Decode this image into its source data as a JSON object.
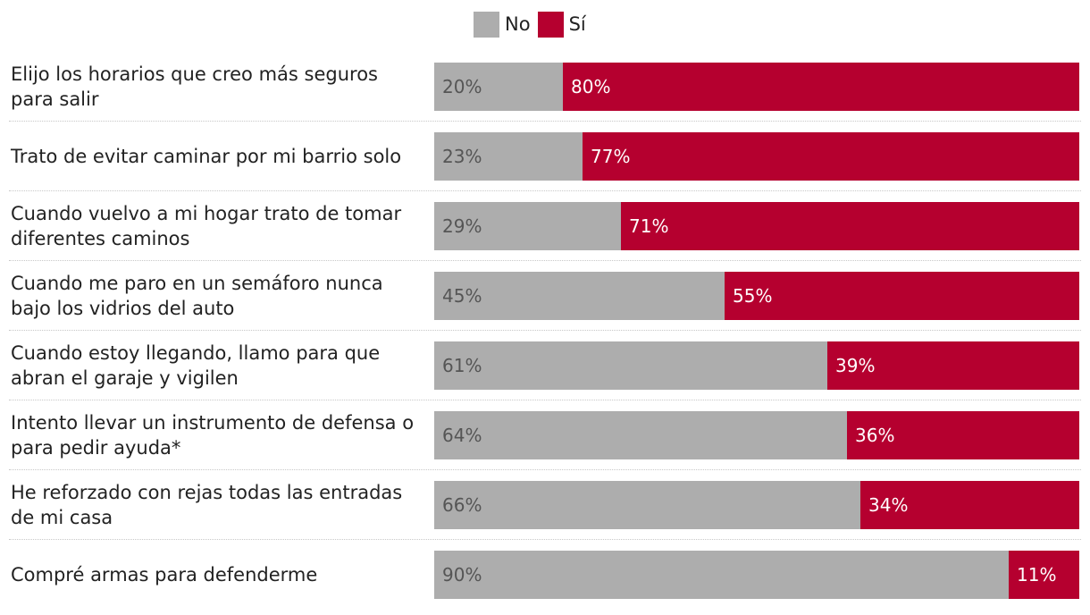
{
  "colors": {
    "no": "#adadad",
    "si": "#b5002f"
  },
  "legend": [
    {
      "key": "no",
      "label": "No"
    },
    {
      "key": "si",
      "label": "Sí"
    }
  ],
  "chart_data": {
    "type": "bar",
    "orientation": "horizontal",
    "stacked": true,
    "legend_position": "top-center",
    "categories": [
      "Elijo los horarios que creo más seguros para salir",
      "Trato de evitar caminar por mi barrio solo",
      "Cuando vuelvo a mi hogar trato de tomar diferentes caminos",
      "Cuando me paro en un semáforo nunca bajo los vidrios del auto",
      "Cuando estoy llegando, llamo para que abran el garaje y vigilen",
      "Intento llevar un instrumento de defensa o para pedir ayuda*",
      "He reforzado con rejas todas las entradas de mi casa",
      "Compré armas para defenderme"
    ],
    "series": [
      {
        "name": "No",
        "values": [
          20,
          23,
          29,
          45,
          61,
          64,
          66,
          90
        ],
        "labels": [
          "20%",
          "23%",
          "29%",
          "45%",
          "61%",
          "64%",
          "66%",
          "90%"
        ]
      },
      {
        "name": "Sí",
        "values": [
          80,
          77,
          71,
          55,
          39,
          36,
          34,
          11
        ],
        "labels": [
          "80%",
          "77%",
          "71%",
          "55%",
          "39%",
          "36%",
          "34%",
          "11%"
        ]
      }
    ],
    "unit": "%",
    "xlim": [
      0,
      100
    ]
  }
}
